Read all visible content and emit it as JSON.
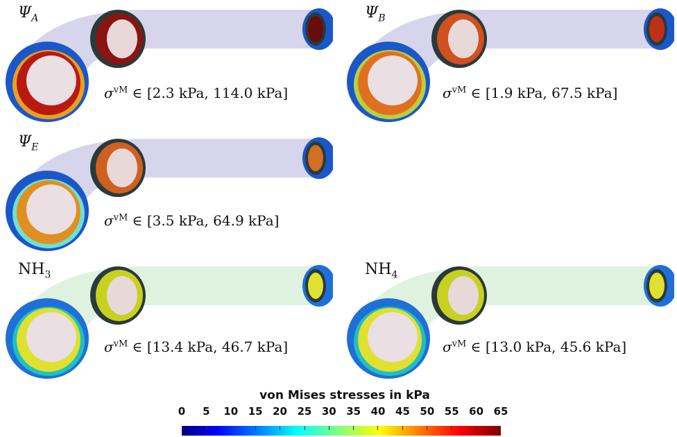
{
  "panels": [
    {
      "id": "psi-a",
      "sym": "Ψ",
      "sub": "A",
      "math": true,
      "range_low": "2.3 kPa",
      "range_high": "114.0 kPa",
      "colors": {
        "front_outer": "#1a57c9",
        "front_inner": "#b81a10",
        "front_lip": "#e8a020",
        "mid": "#8a1410",
        "back": "#6a0c0c",
        "tube": "#c9c7e6"
      }
    },
    {
      "id": "psi-b",
      "sym": "Ψ",
      "sub": "B",
      "math": true,
      "range_low": "1.9 kPa",
      "range_high": "67.5 kPa",
      "colors": {
        "front_outer": "#1a57c9",
        "front_inner": "#e07020",
        "front_lip": "#b8d040",
        "mid": "#d05020",
        "back": "#c03018",
        "tube": "#c9c7e6"
      }
    },
    {
      "id": "psi-e",
      "sym": "Ψ",
      "sub": "E",
      "math": true,
      "range_low": "3.5 kPa",
      "range_high": "64.9 kPa",
      "colors": {
        "front_outer": "#1a57c9",
        "front_inner": "#e09020",
        "front_lip": "#70e0d0",
        "mid": "#d06020",
        "back": "#d07020",
        "tube": "#c9c7e6"
      }
    },
    {
      "id": "nh-3",
      "sym": "NH",
      "sub": "3",
      "math": false,
      "range_low": "13.4 kPa",
      "range_high": "46.7 kPa",
      "colors": {
        "front_outer": "#1e6fd8",
        "front_inner": "#e0e030",
        "front_lip": "#20c0c0",
        "mid": "#c8d020",
        "back": "#e0e030",
        "tube": "#d4eed6"
      }
    },
    {
      "id": "nh-4",
      "sym": "NH",
      "sub": "4",
      "math": false,
      "range_low": "13.0 kPa",
      "range_high": "45.6 kPa",
      "colors": {
        "front_outer": "#1e6fd8",
        "front_inner": "#e0e030",
        "front_lip": "#20c0c0",
        "mid": "#c8d020",
        "back": "#e0e030",
        "tube": "#d4eed6"
      }
    }
  ],
  "sigma_symbol": "σ",
  "sigma_sup": "vM",
  "element_of": "∈",
  "colorbar": {
    "title": "von Mises stresses in kPa",
    "ticks": [
      "0",
      "5",
      "10",
      "15",
      "20",
      "25",
      "30",
      "35",
      "40",
      "45",
      "50",
      "55",
      "60",
      "65"
    ],
    "colormap": "jet"
  }
}
